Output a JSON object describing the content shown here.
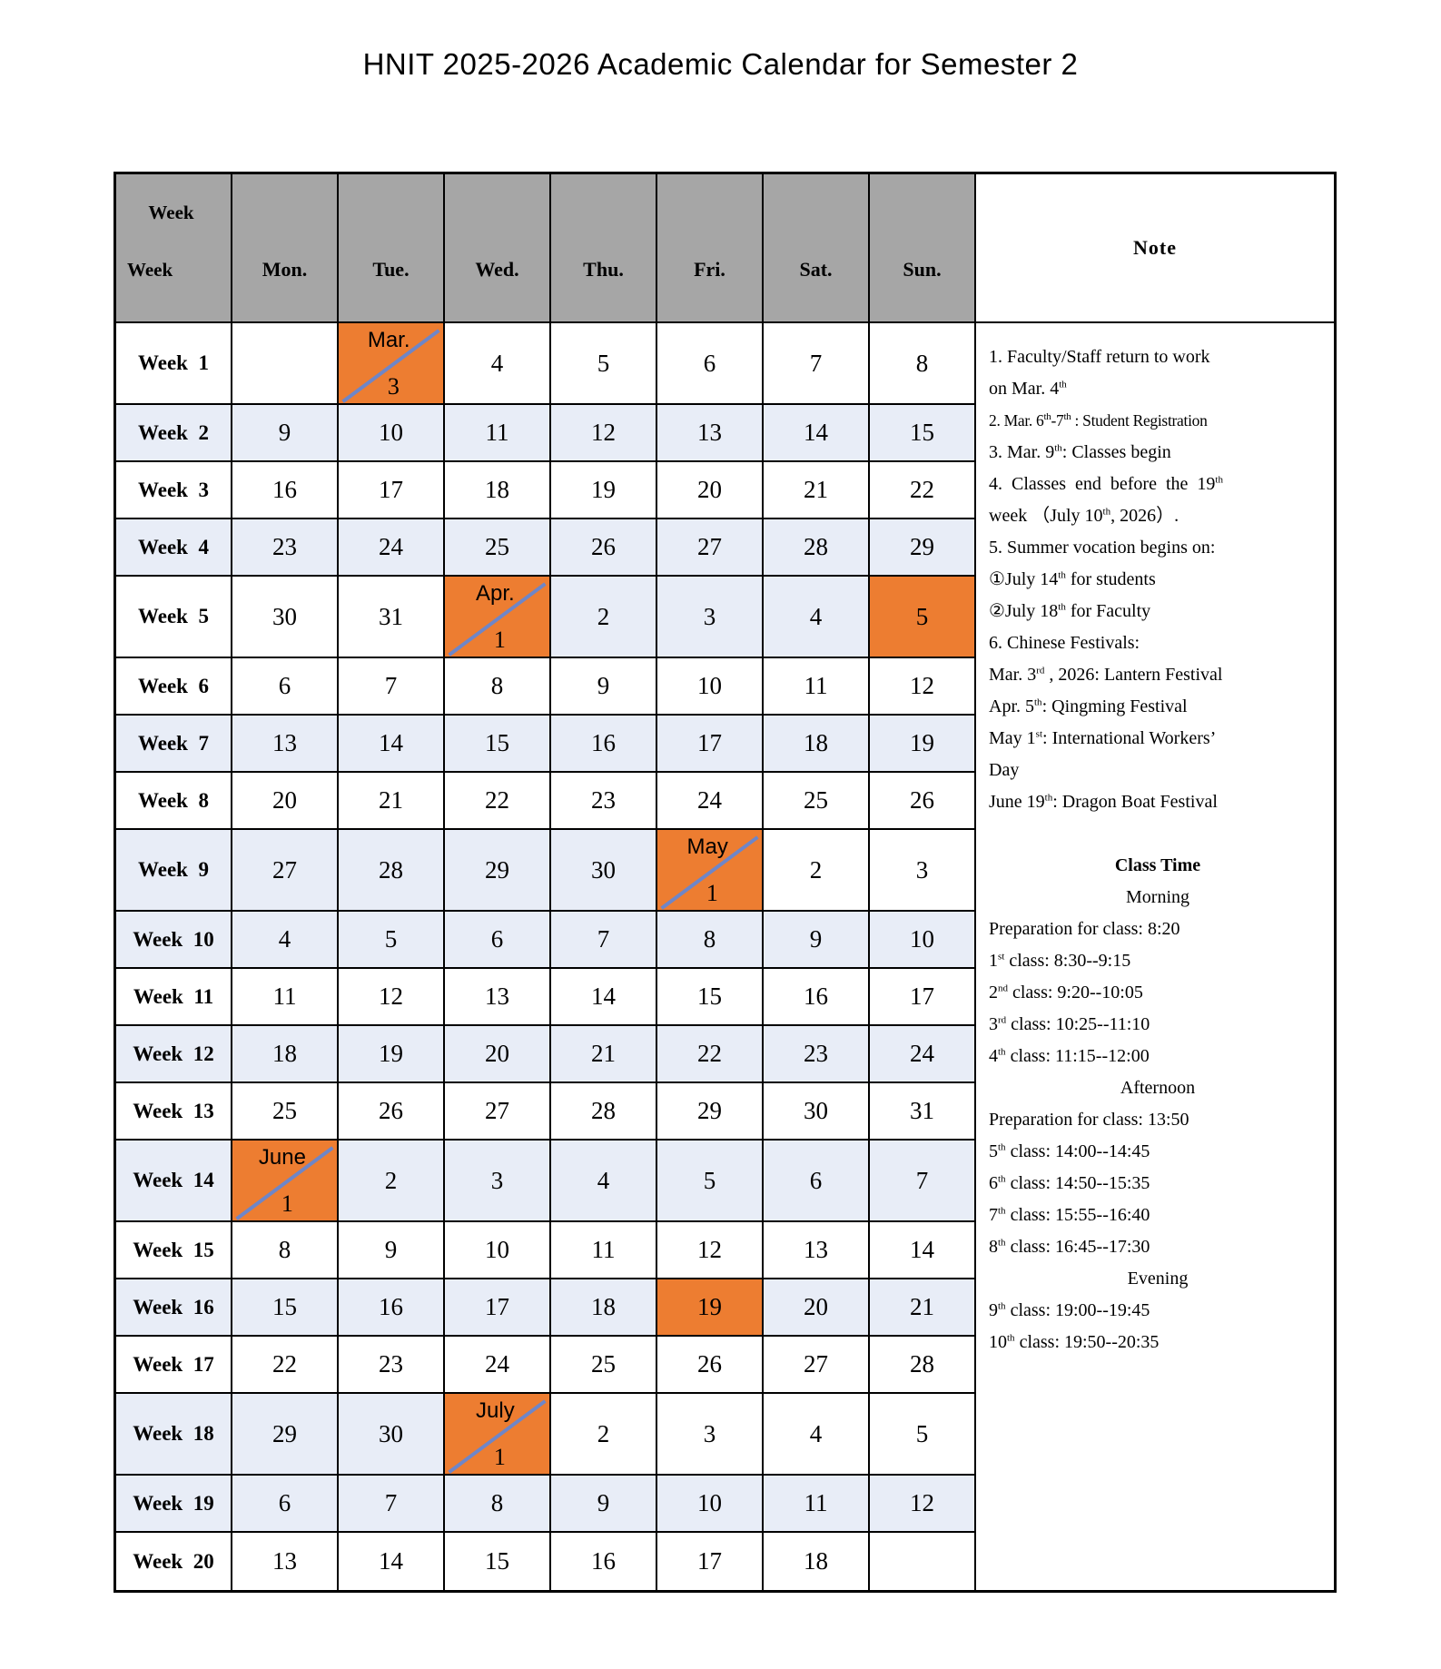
{
  "title": "HNIT 2025-2026 Academic Calendar for Semester 2",
  "colors": {
    "orange": "#ED7D31",
    "band": "#E8EDF7",
    "gray": "#A6A6A6",
    "slash": "#6E86C8",
    "border": "#000000"
  },
  "header": {
    "corner_top": "Week",
    "corner_bottom": "Week",
    "days": [
      "Mon.",
      "Tue.",
      "Wed.",
      "Thu.",
      "Fri.",
      "Sat.",
      "Sun."
    ],
    "note": "Note"
  },
  "weeks": [
    {
      "label": "Week  1",
      "tall": true,
      "lbg": "w",
      "cells": [
        {
          "d": "",
          "bg": "w"
        },
        {
          "d": "3",
          "m": "Mar.",
          "bg": "o",
          "sl": true
        },
        {
          "d": "4",
          "bg": "w"
        },
        {
          "d": "5",
          "bg": "w"
        },
        {
          "d": "6",
          "bg": "w"
        },
        {
          "d": "7",
          "bg": "w"
        },
        {
          "d": "8",
          "bg": "w"
        }
      ]
    },
    {
      "label": "Week  2",
      "tall": false,
      "lbg": "b",
      "cells": [
        {
          "d": "9",
          "bg": "b"
        },
        {
          "d": "10",
          "bg": "b"
        },
        {
          "d": "11",
          "bg": "b"
        },
        {
          "d": "12",
          "bg": "b"
        },
        {
          "d": "13",
          "bg": "b"
        },
        {
          "d": "14",
          "bg": "b"
        },
        {
          "d": "15",
          "bg": "b"
        }
      ]
    },
    {
      "label": "Week  3",
      "tall": false,
      "lbg": "w",
      "cells": [
        {
          "d": "16",
          "bg": "w"
        },
        {
          "d": "17",
          "bg": "w"
        },
        {
          "d": "18",
          "bg": "w"
        },
        {
          "d": "19",
          "bg": "w"
        },
        {
          "d": "20",
          "bg": "w"
        },
        {
          "d": "21",
          "bg": "w"
        },
        {
          "d": "22",
          "bg": "w"
        }
      ]
    },
    {
      "label": "Week  4",
      "tall": false,
      "lbg": "b",
      "cells": [
        {
          "d": "23",
          "bg": "b"
        },
        {
          "d": "24",
          "bg": "b"
        },
        {
          "d": "25",
          "bg": "b"
        },
        {
          "d": "26",
          "bg": "b"
        },
        {
          "d": "27",
          "bg": "b"
        },
        {
          "d": "28",
          "bg": "b"
        },
        {
          "d": "29",
          "bg": "b"
        }
      ]
    },
    {
      "label": "Week  5",
      "tall": true,
      "lbg": "w",
      "cells": [
        {
          "d": "30",
          "bg": "w"
        },
        {
          "d": "31",
          "bg": "w"
        },
        {
          "d": "1",
          "m": "Apr.",
          "bg": "o",
          "sl": true
        },
        {
          "d": "2",
          "bg": "b"
        },
        {
          "d": "3",
          "bg": "b"
        },
        {
          "d": "4",
          "bg": "b"
        },
        {
          "d": "5",
          "bg": "o"
        }
      ]
    },
    {
      "label": "Week  6",
      "tall": false,
      "lbg": "w",
      "cells": [
        {
          "d": "6",
          "bg": "w"
        },
        {
          "d": "7",
          "bg": "w"
        },
        {
          "d": "8",
          "bg": "w"
        },
        {
          "d": "9",
          "bg": "w"
        },
        {
          "d": "10",
          "bg": "w"
        },
        {
          "d": "11",
          "bg": "w"
        },
        {
          "d": "12",
          "bg": "w"
        }
      ]
    },
    {
      "label": "Week  7",
      "tall": false,
      "lbg": "b",
      "cells": [
        {
          "d": "13",
          "bg": "b"
        },
        {
          "d": "14",
          "bg": "b"
        },
        {
          "d": "15",
          "bg": "b"
        },
        {
          "d": "16",
          "bg": "b"
        },
        {
          "d": "17",
          "bg": "b"
        },
        {
          "d": "18",
          "bg": "b"
        },
        {
          "d": "19",
          "bg": "b"
        }
      ]
    },
    {
      "label": "Week  8",
      "tall": false,
      "lbg": "w",
      "cells": [
        {
          "d": "20",
          "bg": "w"
        },
        {
          "d": "21",
          "bg": "w"
        },
        {
          "d": "22",
          "bg": "w"
        },
        {
          "d": "23",
          "bg": "w"
        },
        {
          "d": "24",
          "bg": "w"
        },
        {
          "d": "25",
          "bg": "w"
        },
        {
          "d": "26",
          "bg": "w"
        }
      ]
    },
    {
      "label": "Week  9",
      "tall": true,
      "lbg": "b",
      "cells": [
        {
          "d": "27",
          "bg": "b"
        },
        {
          "d": "28",
          "bg": "b"
        },
        {
          "d": "29",
          "bg": "b"
        },
        {
          "d": "30",
          "bg": "b"
        },
        {
          "d": "1",
          "m": "May",
          "bg": "o",
          "sl": true
        },
        {
          "d": "2",
          "bg": "w"
        },
        {
          "d": "3",
          "bg": "w"
        }
      ]
    },
    {
      "label": "Week  10",
      "tall": false,
      "lbg": "b",
      "cells": [
        {
          "d": "4",
          "bg": "b"
        },
        {
          "d": "5",
          "bg": "b"
        },
        {
          "d": "6",
          "bg": "b"
        },
        {
          "d": "7",
          "bg": "b"
        },
        {
          "d": "8",
          "bg": "b"
        },
        {
          "d": "9",
          "bg": "b"
        },
        {
          "d": "10",
          "bg": "b"
        }
      ]
    },
    {
      "label": "Week  11",
      "tall": false,
      "lbg": "w",
      "cells": [
        {
          "d": "11",
          "bg": "w"
        },
        {
          "d": "12",
          "bg": "w"
        },
        {
          "d": "13",
          "bg": "w"
        },
        {
          "d": "14",
          "bg": "w"
        },
        {
          "d": "15",
          "bg": "w"
        },
        {
          "d": "16",
          "bg": "w"
        },
        {
          "d": "17",
          "bg": "w"
        }
      ]
    },
    {
      "label": "Week  12",
      "tall": false,
      "lbg": "b",
      "cells": [
        {
          "d": "18",
          "bg": "b"
        },
        {
          "d": "19",
          "bg": "b"
        },
        {
          "d": "20",
          "bg": "b"
        },
        {
          "d": "21",
          "bg": "b"
        },
        {
          "d": "22",
          "bg": "b"
        },
        {
          "d": "23",
          "bg": "b"
        },
        {
          "d": "24",
          "bg": "b"
        }
      ]
    },
    {
      "label": "Week  13",
      "tall": false,
      "lbg": "w",
      "cells": [
        {
          "d": "25",
          "bg": "w"
        },
        {
          "d": "26",
          "bg": "w"
        },
        {
          "d": "27",
          "bg": "w"
        },
        {
          "d": "28",
          "bg": "w"
        },
        {
          "d": "29",
          "bg": "w"
        },
        {
          "d": "30",
          "bg": "w"
        },
        {
          "d": "31",
          "bg": "w"
        }
      ]
    },
    {
      "label": "Week  14",
      "tall": true,
      "lbg": "b",
      "cells": [
        {
          "d": "1",
          "m": "June",
          "bg": "o",
          "sl": true
        },
        {
          "d": "2",
          "bg": "b"
        },
        {
          "d": "3",
          "bg": "b"
        },
        {
          "d": "4",
          "bg": "b"
        },
        {
          "d": "5",
          "bg": "b"
        },
        {
          "d": "6",
          "bg": "b"
        },
        {
          "d": "7",
          "bg": "b"
        }
      ]
    },
    {
      "label": "Week  15",
      "tall": false,
      "lbg": "w",
      "cells": [
        {
          "d": "8",
          "bg": "w"
        },
        {
          "d": "9",
          "bg": "w"
        },
        {
          "d": "10",
          "bg": "w"
        },
        {
          "d": "11",
          "bg": "w"
        },
        {
          "d": "12",
          "bg": "w"
        },
        {
          "d": "13",
          "bg": "w"
        },
        {
          "d": "14",
          "bg": "w"
        }
      ]
    },
    {
      "label": "Week  16",
      "tall": false,
      "lbg": "b",
      "cells": [
        {
          "d": "15",
          "bg": "b"
        },
        {
          "d": "16",
          "bg": "b"
        },
        {
          "d": "17",
          "bg": "b"
        },
        {
          "d": "18",
          "bg": "b"
        },
        {
          "d": "19",
          "bg": "o"
        },
        {
          "d": "20",
          "bg": "b"
        },
        {
          "d": "21",
          "bg": "b"
        }
      ]
    },
    {
      "label": "Week  17",
      "tall": false,
      "lbg": "w",
      "cells": [
        {
          "d": "22",
          "bg": "w"
        },
        {
          "d": "23",
          "bg": "w"
        },
        {
          "d": "24",
          "bg": "w"
        },
        {
          "d": "25",
          "bg": "w"
        },
        {
          "d": "26",
          "bg": "w"
        },
        {
          "d": "27",
          "bg": "w"
        },
        {
          "d": "28",
          "bg": "w"
        }
      ]
    },
    {
      "label": "Week  18",
      "tall": true,
      "lbg": "b",
      "cells": [
        {
          "d": "29",
          "bg": "b"
        },
        {
          "d": "30",
          "bg": "b"
        },
        {
          "d": "1",
          "m": "July",
          "bg": "o",
          "sl": true
        },
        {
          "d": "2",
          "bg": "w"
        },
        {
          "d": "3",
          "bg": "w"
        },
        {
          "d": "4",
          "bg": "w"
        },
        {
          "d": "5",
          "bg": "w"
        }
      ]
    },
    {
      "label": "Week  19",
      "tall": false,
      "lbg": "b",
      "cells": [
        {
          "d": "6",
          "bg": "b"
        },
        {
          "d": "7",
          "bg": "b"
        },
        {
          "d": "8",
          "bg": "b"
        },
        {
          "d": "9",
          "bg": "b"
        },
        {
          "d": "10",
          "bg": "b"
        },
        {
          "d": "11",
          "bg": "b"
        },
        {
          "d": "12",
          "bg": "b"
        }
      ]
    },
    {
      "label": "Week  20",
      "tall": false,
      "lbg": "w",
      "cells": [
        {
          "d": "13",
          "bg": "w"
        },
        {
          "d": "14",
          "bg": "w"
        },
        {
          "d": "15",
          "bg": "w"
        },
        {
          "d": "16",
          "bg": "w"
        },
        {
          "d": "17",
          "bg": "w"
        },
        {
          "d": "18",
          "bg": "w"
        },
        {
          "d": "",
          "bg": "w"
        }
      ]
    }
  ],
  "note_lines": [
    {
      "segs": [
        {
          "t": "1. Faculty/Staff return to work"
        }
      ]
    },
    {
      "segs": [
        {
          "t": "on Mar. 4"
        },
        {
          "s": "th"
        }
      ]
    },
    {
      "small": true,
      "segs": [
        {
          "t": "2. Mar. 6"
        },
        {
          "s": "th"
        },
        {
          "t": "-7"
        },
        {
          "s": "th"
        },
        {
          "t": " : Student Registration"
        }
      ]
    },
    {
      "segs": [
        {
          "t": "3. Mar.  9"
        },
        {
          "s": "th"
        },
        {
          "t": ": Classes begin"
        }
      ]
    },
    {
      "wide": true,
      "segs": [
        {
          "t": "4. Classes end before the 19"
        },
        {
          "s": "th"
        }
      ]
    },
    {
      "segs": [
        {
          "t": "week （July 10"
        },
        {
          "s": "th"
        },
        {
          "t": ", 2026）."
        }
      ]
    },
    {
      "segs": [
        {
          "t": "5. Summer vocation begins on:"
        }
      ]
    },
    {
      "segs": [
        {
          "t": "①July 14"
        },
        {
          "s": "th"
        },
        {
          "t": " for students"
        }
      ]
    },
    {
      "segs": [
        {
          "t": "②July 18"
        },
        {
          "s": "th"
        },
        {
          "t": " for Faculty"
        }
      ]
    },
    {
      "segs": [
        {
          "t": "6. Chinese Festivals:"
        }
      ]
    },
    {
      "segs": [
        {
          "t": "Mar. 3"
        },
        {
          "s": "rd"
        },
        {
          "t": " , 2026:  Lantern Festival"
        }
      ]
    },
    {
      "segs": [
        {
          "t": "Apr. 5"
        },
        {
          "s": "th"
        },
        {
          "t": ":  Qingming Festival"
        }
      ]
    },
    {
      "segs": [
        {
          "t": "May 1"
        },
        {
          "s": "st"
        },
        {
          "t": ": International Workers’"
        }
      ]
    },
    {
      "segs": [
        {
          "t": "Day"
        }
      ]
    },
    {
      "segs": [
        {
          "t": "June 19"
        },
        {
          "s": "th"
        },
        {
          "t": ":  Dragon Boat Festival"
        }
      ]
    },
    {
      "blank": true,
      "segs": []
    },
    {
      "center": true,
      "bold": true,
      "segs": [
        {
          "t": "Class Time"
        }
      ]
    },
    {
      "center": true,
      "segs": [
        {
          "t": "Morning"
        }
      ]
    },
    {
      "segs": [
        {
          "t": "Preparation for class: 8:20"
        }
      ]
    },
    {
      "segs": [
        {
          "t": "1"
        },
        {
          "s": "st"
        },
        {
          "t": " class: 8:30--9:15"
        }
      ]
    },
    {
      "segs": [
        {
          "t": "2"
        },
        {
          "s": "nd"
        },
        {
          "t": " class: 9:20--10:05"
        }
      ]
    },
    {
      "segs": [
        {
          "t": "3"
        },
        {
          "s": "rd"
        },
        {
          "t": " class: 10:25--11:10"
        }
      ]
    },
    {
      "segs": [
        {
          "t": "4"
        },
        {
          "s": "th"
        },
        {
          "t": " class: 11:15--12:00"
        }
      ]
    },
    {
      "center": true,
      "segs": [
        {
          "t": "Afternoon"
        }
      ]
    },
    {
      "segs": [
        {
          "t": "Preparation for class: 13:50"
        }
      ]
    },
    {
      "segs": [
        {
          "t": "5"
        },
        {
          "s": "th"
        },
        {
          "t": " class: 14:00--14:45"
        }
      ]
    },
    {
      "segs": [
        {
          "t": "6"
        },
        {
          "s": "th"
        },
        {
          "t": " class: 14:50--15:35"
        }
      ]
    },
    {
      "segs": [
        {
          "t": "7"
        },
        {
          "s": "th"
        },
        {
          "t": " class: 15:55--16:40"
        }
      ]
    },
    {
      "segs": [
        {
          "t": "8"
        },
        {
          "s": "th"
        },
        {
          "t": " class: 16:45--17:30"
        }
      ]
    },
    {
      "center": true,
      "segs": [
        {
          "t": "Evening"
        }
      ]
    },
    {
      "segs": [
        {
          "t": "9"
        },
        {
          "s": "th"
        },
        {
          "t": " class: 19:00--19:45"
        }
      ]
    },
    {
      "segs": [
        {
          "t": "10"
        },
        {
          "s": "th"
        },
        {
          "t": " class: 19:50--20:35"
        }
      ]
    }
  ]
}
